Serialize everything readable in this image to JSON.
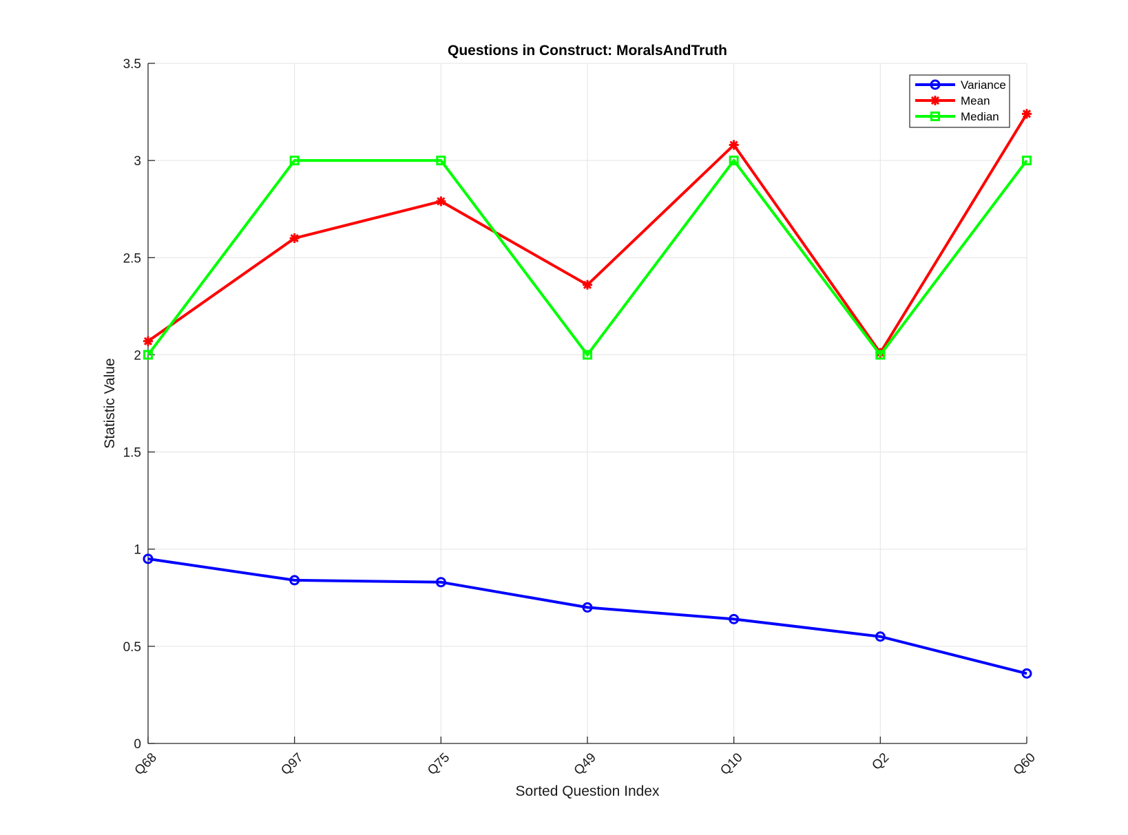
{
  "chart_data": {
    "type": "line",
    "title": "Questions in Construct: MoralsAndTruth",
    "xlabel": "Sorted Question Index",
    "ylabel": "Statistic Value",
    "categories": [
      "Q68",
      "Q97",
      "Q75",
      "Q49",
      "Q10",
      "Q2",
      "Q60"
    ],
    "yticks": [
      "0",
      "0.5",
      "1",
      "1.5",
      "2",
      "2.5",
      "3",
      "3.5"
    ],
    "ylim": [
      0,
      3.5
    ],
    "grid": true,
    "legend_position": "top-right",
    "series": [
      {
        "name": "Variance",
        "color": "#0000ff",
        "marker": "circle",
        "values": [
          0.95,
          0.84,
          0.83,
          0.7,
          0.64,
          0.55,
          0.36
        ]
      },
      {
        "name": "Mean",
        "color": "#ff0000",
        "marker": "asterisk",
        "values": [
          2.07,
          2.6,
          2.79,
          2.36,
          3.08,
          2.01,
          3.24
        ]
      },
      {
        "name": "Median",
        "color": "#00ff00",
        "marker": "square",
        "values": [
          2,
          3,
          3,
          2,
          3,
          2,
          3
        ]
      }
    ]
  }
}
